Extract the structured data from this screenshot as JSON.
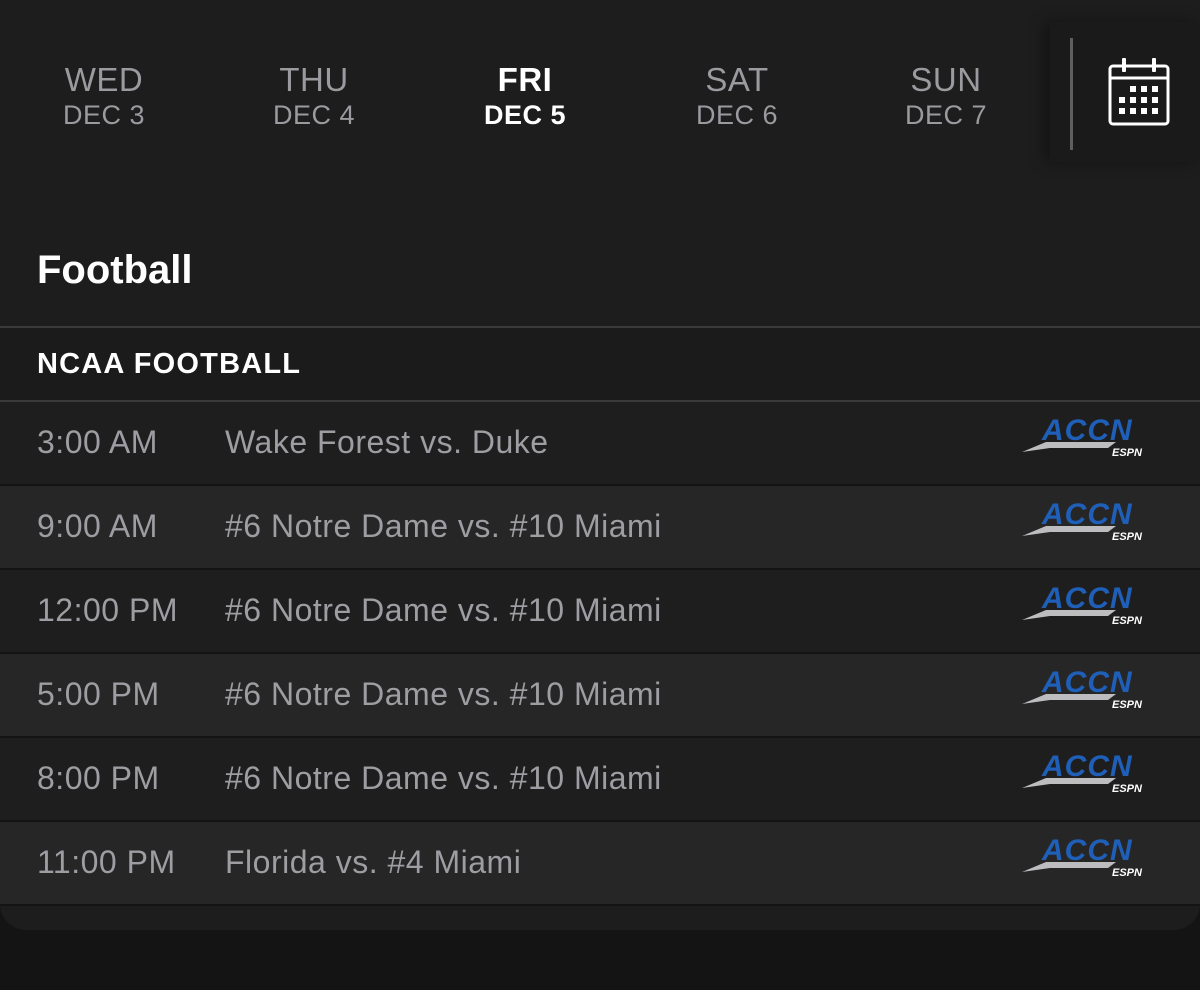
{
  "days": [
    {
      "dow": "WED",
      "date": "DEC 3",
      "active": false
    },
    {
      "dow": "THU",
      "date": "DEC 4",
      "active": false
    },
    {
      "dow": "FRI",
      "date": "DEC 5",
      "active": true
    },
    {
      "dow": "SAT",
      "date": "DEC 6",
      "active": false
    },
    {
      "dow": "SUN",
      "date": "DEC 7",
      "active": false
    }
  ],
  "calendar_icon": "calendar-icon",
  "section": {
    "title": "Football"
  },
  "league": {
    "name": "NCAA FOOTBALL"
  },
  "network": {
    "logo_text": "ACCN",
    "logo_subtext": "ESPN",
    "icon": "accn-espn-logo"
  },
  "events": [
    {
      "time": "3:00 AM",
      "matchup": "Wake Forest vs. Duke"
    },
    {
      "time": "9:00 AM",
      "matchup": "#6 Notre Dame vs. #10 Miami"
    },
    {
      "time": "12:00 PM",
      "matchup": "#6 Notre Dame vs. #10 Miami"
    },
    {
      "time": "5:00 PM",
      "matchup": "#6 Notre Dame vs. #10 Miami"
    },
    {
      "time": "8:00 PM",
      "matchup": "#6 Notre Dame vs. #10 Miami"
    },
    {
      "time": "11:00 PM",
      "matchup": "Florida vs. #4 Miami"
    }
  ],
  "colors": {
    "background": "#1d1d1e",
    "text_primary": "#ffffff",
    "text_muted": "#9d9da2",
    "accn_blue": "#1f5fb8",
    "accn_swoosh": "#bdbdc0"
  }
}
